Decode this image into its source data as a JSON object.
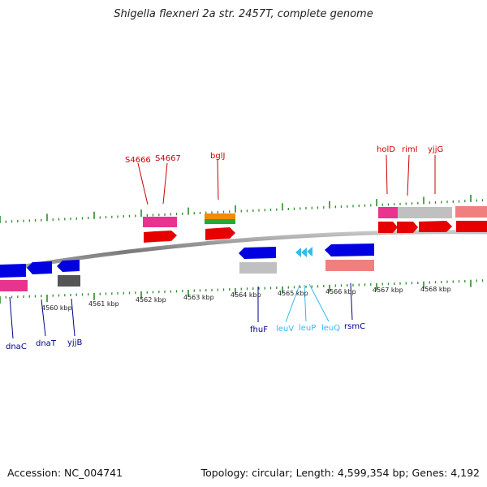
{
  "title": "Shigella flexneri 2a str. 2457T, complete genome",
  "footer": {
    "accession": "Accession: NC_004741",
    "topology": "Topology: circular; Length: 4,599,354 bp; Genes: 4,192"
  },
  "scale": {
    "ticks": [
      "4560 kbp",
      "4561 kbp",
      "4562 kbp",
      "4563 kbp",
      "4564 kbp",
      "4565 kbp",
      "4566 kbp",
      "4567 kbp",
      "4568 kbp"
    ]
  },
  "colors": {
    "backbone": "#8c8c8c",
    "tick": "#2e8b2e",
    "forward_label": "#cc0000",
    "reverse_label": "#00008b",
    "rna_label": "#33bbee",
    "cds_red": "#e60000",
    "gene_pink": "#e8338f",
    "cds_blue": "#0000e0",
    "gene_gray": "#c0c0c0",
    "gene_dark": "#555555",
    "gene_salmon": "#f08080",
    "trna_cyan": "#33bbee",
    "orange": "#f08c00",
    "green": "#22aa33"
  },
  "genes_forward": [
    "S4666",
    "S4667",
    "bglJ",
    "holD",
    "rimI",
    "yjjG"
  ],
  "genes_reverse": [
    "dnaC",
    "dnaT",
    "yjjB",
    "fhuF",
    "rsmC"
  ],
  "genes_rna": [
    "leuV",
    "leuP",
    "leuQ"
  ]
}
